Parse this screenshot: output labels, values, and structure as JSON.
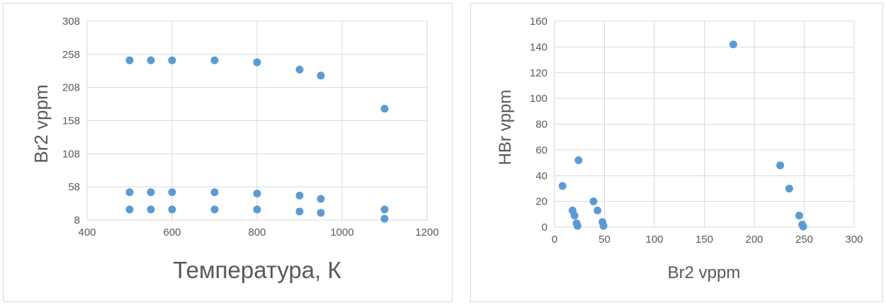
{
  "chart_data": [
    {
      "type": "scatter",
      "xlabel": "Температура, К",
      "ylabel": "Br2 vppm",
      "xlim": [
        400,
        1200
      ],
      "ylim": [
        8,
        308
      ],
      "xticks": [
        "400",
        "600",
        "800",
        "1000",
        "1200"
      ],
      "yticks": [
        "8",
        "58",
        "108",
        "158",
        "208",
        "258",
        "308"
      ],
      "grid": true,
      "color": "#5b9bd5",
      "points": [
        {
          "x": 500,
          "y": 249
        },
        {
          "x": 550,
          "y": 249
        },
        {
          "x": 600,
          "y": 249
        },
        {
          "x": 700,
          "y": 249
        },
        {
          "x": 800,
          "y": 246
        },
        {
          "x": 900,
          "y": 235
        },
        {
          "x": 950,
          "y": 226
        },
        {
          "x": 1100,
          "y": 176
        },
        {
          "x": 500,
          "y": 50
        },
        {
          "x": 550,
          "y": 50
        },
        {
          "x": 600,
          "y": 50
        },
        {
          "x": 700,
          "y": 50
        },
        {
          "x": 800,
          "y": 48
        },
        {
          "x": 900,
          "y": 45
        },
        {
          "x": 950,
          "y": 40
        },
        {
          "x": 500,
          "y": 24
        },
        {
          "x": 550,
          "y": 24
        },
        {
          "x": 600,
          "y": 24
        },
        {
          "x": 700,
          "y": 24
        },
        {
          "x": 800,
          "y": 24
        },
        {
          "x": 900,
          "y": 21
        },
        {
          "x": 950,
          "y": 19
        },
        {
          "x": 1100,
          "y": 24
        },
        {
          "x": 1100,
          "y": 10
        }
      ]
    },
    {
      "type": "scatter",
      "xlabel": "Br2 vppm",
      "ylabel": "HBr vppm",
      "xlim": [
        0,
        300
      ],
      "ylim": [
        0,
        160
      ],
      "xticks": [
        "0",
        "50",
        "100",
        "150",
        "200",
        "250",
        "300"
      ],
      "yticks": [
        "0",
        "20",
        "40",
        "60",
        "80",
        "100",
        "120",
        "140",
        "160"
      ],
      "grid": true,
      "color": "#5b9bd5",
      "points": [
        {
          "x": 8,
          "y": 32
        },
        {
          "x": 18,
          "y": 13
        },
        {
          "x": 20,
          "y": 9
        },
        {
          "x": 22,
          "y": 3
        },
        {
          "x": 23,
          "y": 1
        },
        {
          "x": 24,
          "y": 52
        },
        {
          "x": 39,
          "y": 20
        },
        {
          "x": 43,
          "y": 13
        },
        {
          "x": 48,
          "y": 4
        },
        {
          "x": 49,
          "y": 1
        },
        {
          "x": 179,
          "y": 142
        },
        {
          "x": 226,
          "y": 48
        },
        {
          "x": 235,
          "y": 30
        },
        {
          "x": 245,
          "y": 9
        },
        {
          "x": 248,
          "y": 2
        },
        {
          "x": 249,
          "y": 0.5
        }
      ]
    }
  ]
}
